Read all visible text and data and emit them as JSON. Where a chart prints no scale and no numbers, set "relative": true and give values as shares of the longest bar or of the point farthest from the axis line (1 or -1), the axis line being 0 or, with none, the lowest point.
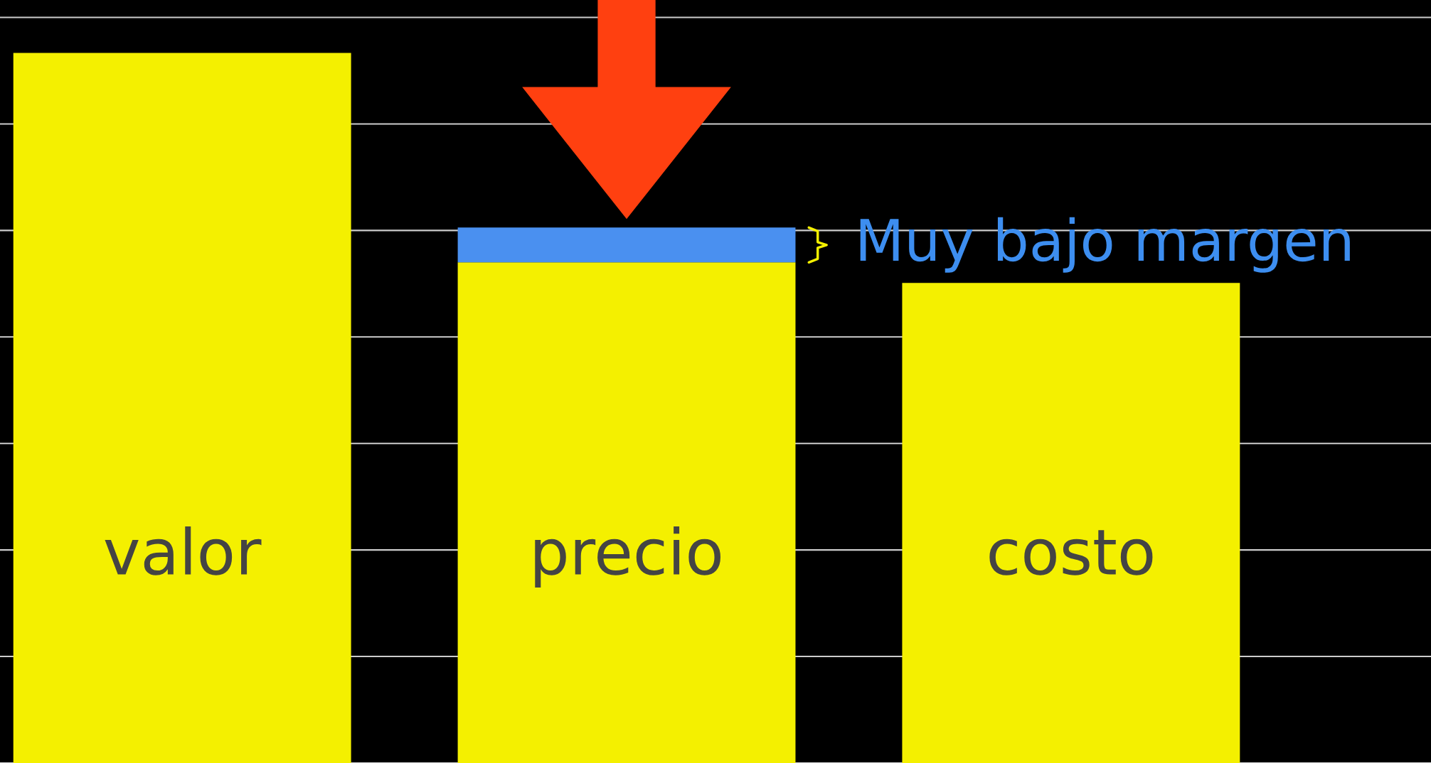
{
  "chart_data": {
    "type": "bar",
    "relative": true,
    "stacked": true,
    "categories": [
      "valor",
      "precio",
      "costo"
    ],
    "series": [
      {
        "color": "#f4f000",
        "values": [
          1,
          0.705,
          0.676
        ]
      },
      {
        "color": "#4a90f0",
        "values": [
          null,
          0.049,
          null
        ]
      }
    ],
    "grid": "y",
    "annotations": [
      "Muy bajo margen"
    ]
  }
}
